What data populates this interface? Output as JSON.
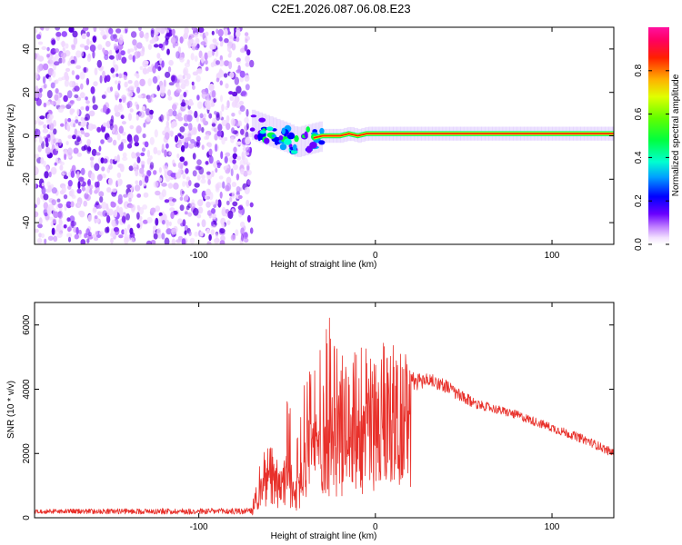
{
  "figure": {
    "title": "C2E1.2026.087.06.08.E23"
  },
  "chart_data": [
    {
      "type": "heatmap",
      "title": "",
      "xlabel": "Height of straight line (km)",
      "ylabel": "Frequency (Hz)",
      "xlim": [
        -193,
        135
      ],
      "ylim": [
        -50,
        50
      ],
      "xticks": [
        -100,
        0,
        100
      ],
      "yticks": [
        -40,
        -20,
        0,
        20,
        40
      ],
      "noise_region_x": [
        -193,
        -70
      ],
      "signal": {
        "x": [
          -70,
          -60,
          -50,
          -45,
          -40,
          -35,
          -30,
          -25,
          -20,
          -15,
          -10,
          -5,
          0,
          5,
          10,
          20,
          40,
          60,
          80,
          90,
          100,
          120,
          135
        ],
        "y": [
          5,
          2,
          -1,
          -3,
          -2,
          -1,
          0,
          0,
          0,
          1,
          0,
          1,
          1,
          1,
          1,
          1,
          1,
          1,
          1,
          1,
          1,
          1,
          1
        ]
      },
      "colorbar": {
        "label": "Normalized spectral amplitude",
        "range": [
          0,
          1
        ],
        "ticks": [
          0.0,
          0.2,
          0.4,
          0.6,
          0.8
        ]
      }
    },
    {
      "type": "line",
      "title": "",
      "xlabel": "Height of straight line (km)",
      "ylabel": "SNR (10 * v/v)",
      "xlim": [
        -193,
        135
      ],
      "ylim": [
        0,
        6700
      ],
      "xticks": [
        -100,
        0,
        100
      ],
      "yticks": [
        0,
        2000,
        4000,
        6000
      ],
      "color": "#e8302a",
      "envelope": {
        "x": [
          -193,
          -70,
          -65,
          -60,
          -55,
          -50,
          -45,
          -40,
          -35,
          -30,
          -25,
          -20,
          -15,
          -10,
          -5,
          0,
          10,
          20,
          30,
          40,
          50,
          60,
          80,
          100,
          120,
          135
        ],
        "baseline": [
          200,
          200,
          1000,
          1500,
          1100,
          1600,
          900,
          2300,
          2800,
          3200,
          3000,
          3300,
          3500,
          3600,
          3700,
          3800,
          4000,
          4200,
          4300,
          4100,
          3700,
          3500,
          3200,
          2800,
          2400,
          2000
        ],
        "peak": [
          300,
          350,
          1900,
          2300,
          2000,
          4000,
          2300,
          4800,
          4600,
          5600,
          6500,
          5300,
          5000,
          5500,
          5300,
          5400,
          5500,
          4700,
          4600,
          4400,
          4000,
          3700,
          3400,
          3000,
          2600,
          2200
        ]
      }
    }
  ]
}
